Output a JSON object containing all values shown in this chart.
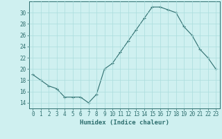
{
  "x": [
    0,
    1,
    2,
    3,
    4,
    5,
    6,
    7,
    8,
    9,
    10,
    11,
    12,
    13,
    14,
    15,
    16,
    17,
    18,
    19,
    20,
    21,
    22,
    23
  ],
  "y": [
    19,
    18,
    17,
    16.5,
    15,
    15,
    15,
    14,
    15.5,
    20,
    21,
    23,
    25,
    27,
    29,
    31,
    31,
    30.5,
    30,
    27.5,
    26,
    23.5,
    22,
    20
  ],
  "line_color": "#2d6e6e",
  "marker": "+",
  "bg_color": "#cff0f0",
  "grid_color": "#aadddd",
  "xlabel": "Humidex (Indice chaleur)",
  "xlim": [
    -0.5,
    23.5
  ],
  "ylim": [
    13,
    32
  ],
  "yticks": [
    14,
    16,
    18,
    20,
    22,
    24,
    26,
    28,
    30
  ],
  "xticks": [
    0,
    1,
    2,
    3,
    4,
    5,
    6,
    7,
    8,
    9,
    10,
    11,
    12,
    13,
    14,
    15,
    16,
    17,
    18,
    19,
    20,
    21,
    22,
    23
  ],
  "label_fontsize": 6.5,
  "tick_fontsize": 5.5
}
